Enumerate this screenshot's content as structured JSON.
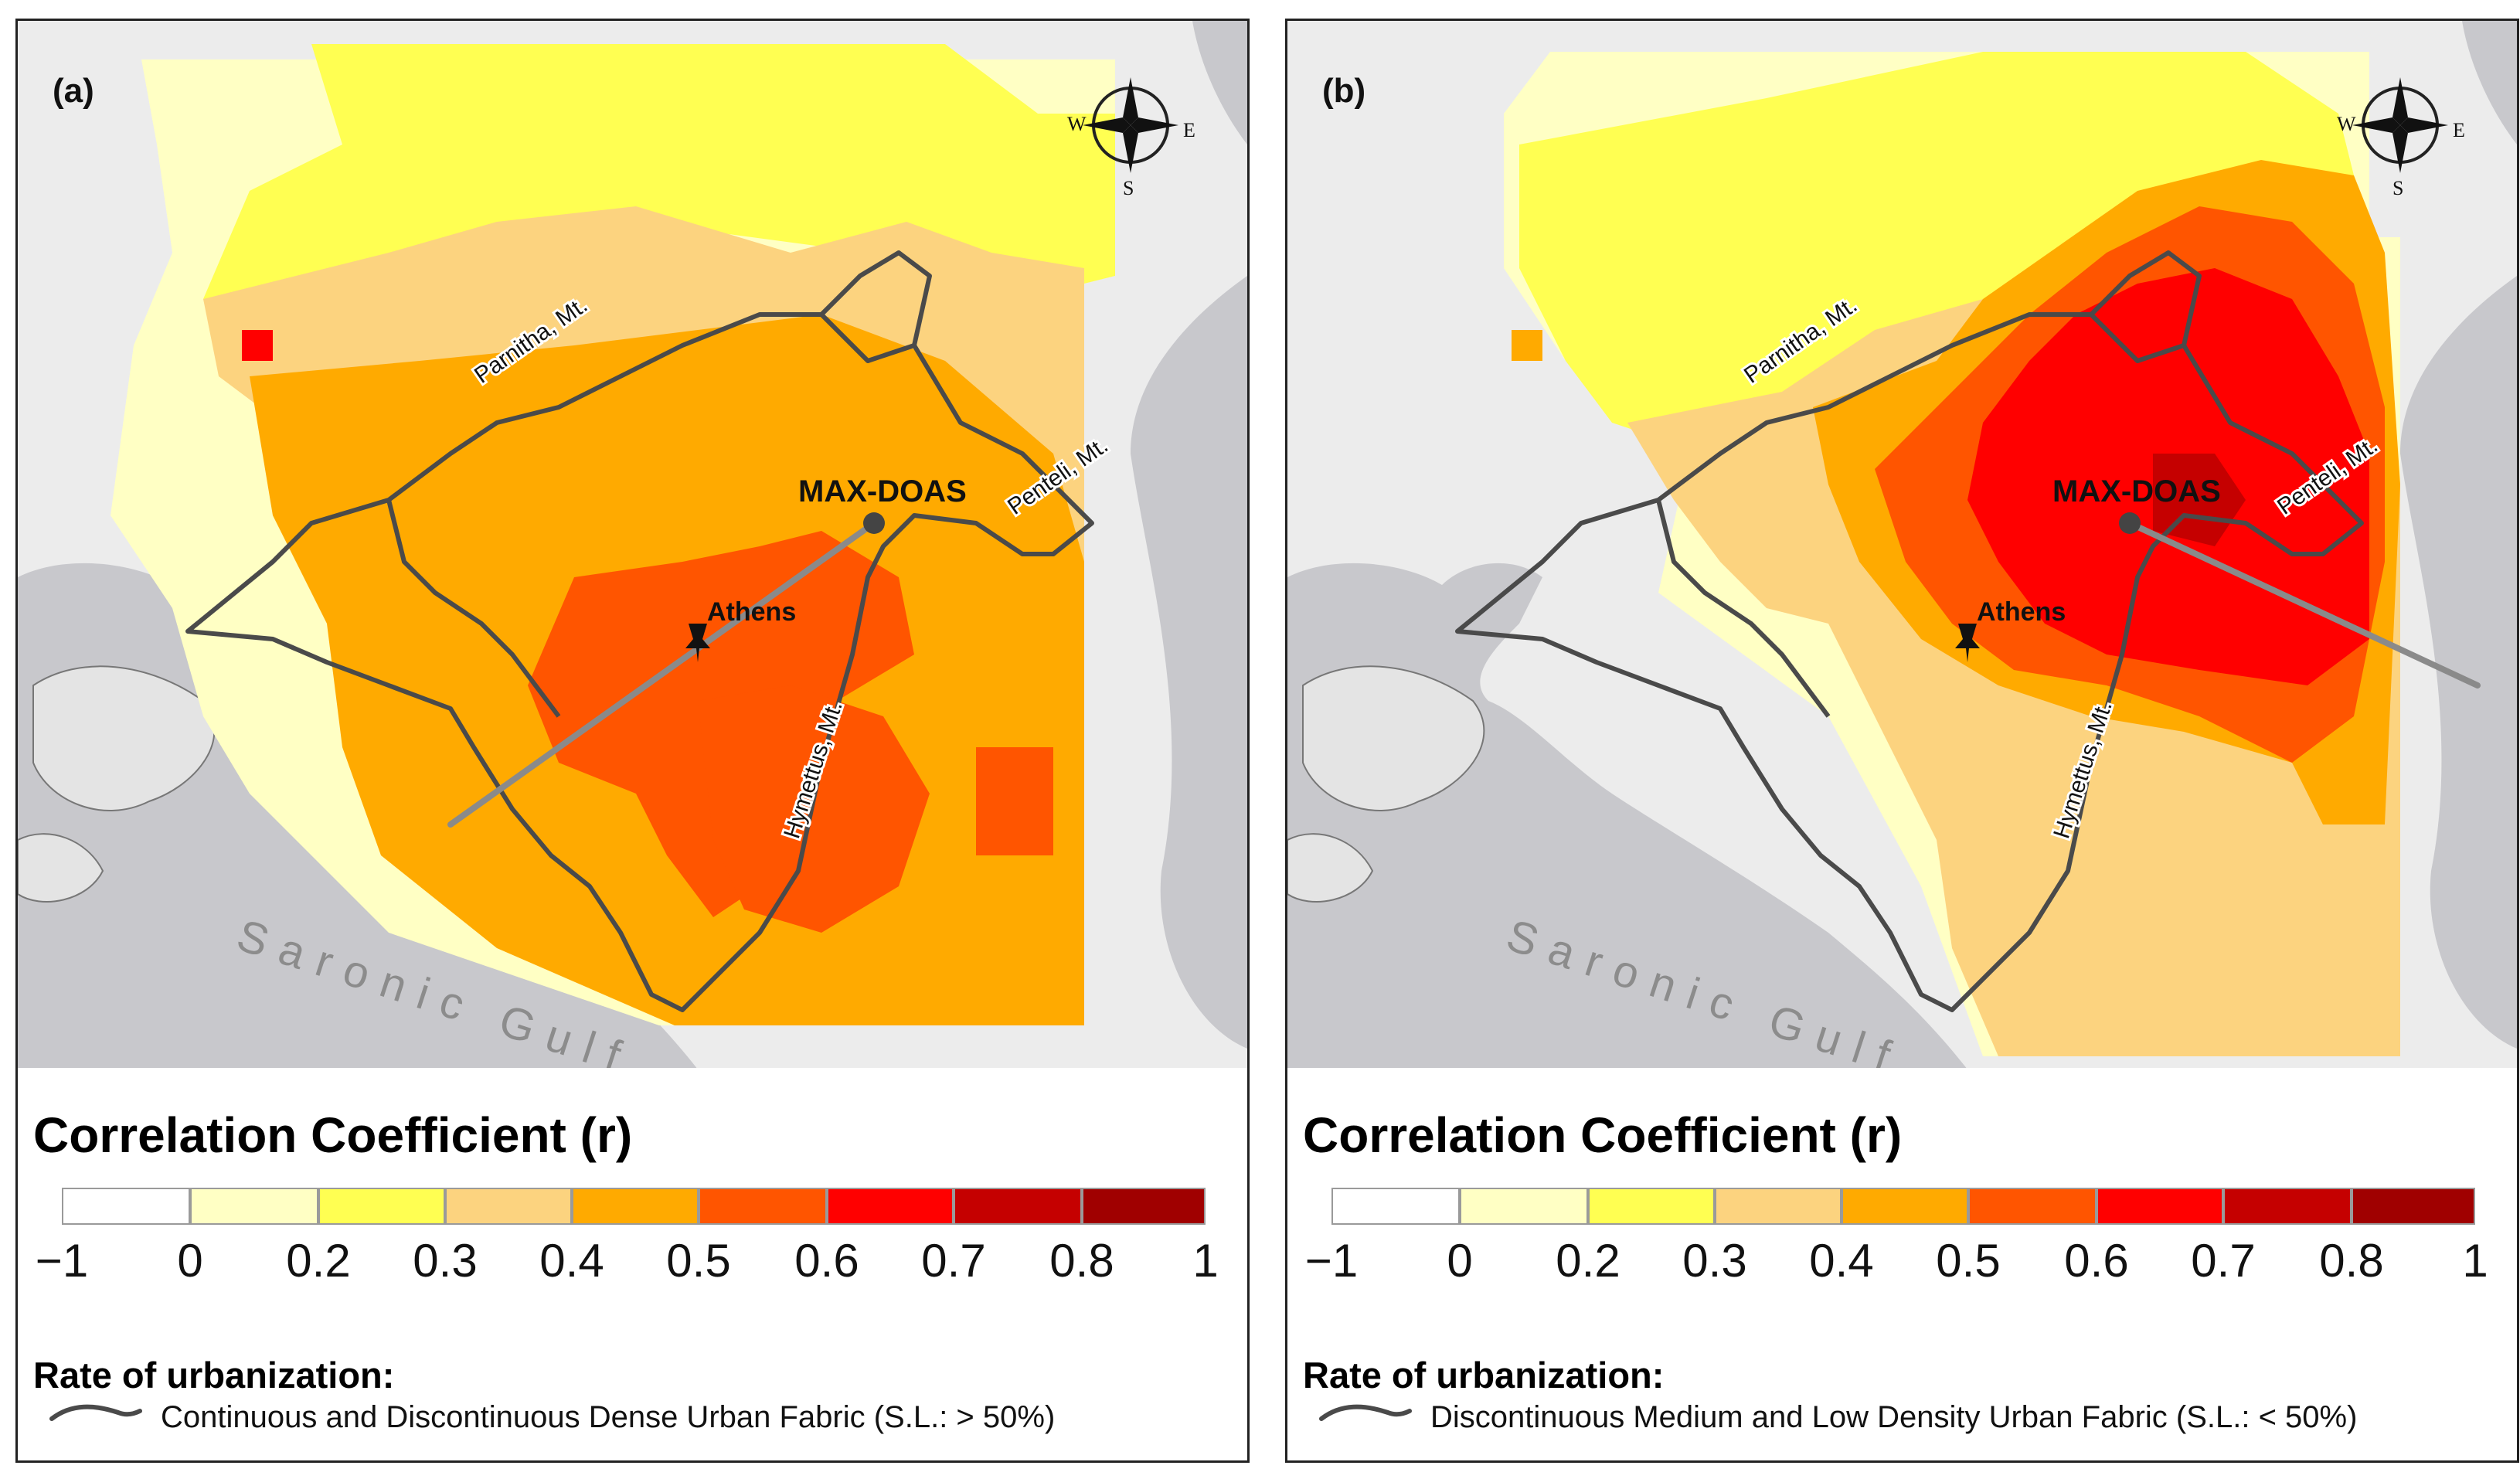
{
  "panels": [
    {
      "label": "(a)",
      "places": {
        "station": "MAX-DOAS",
        "city": "Athens",
        "gulf": "Saronic Gulf",
        "mt_parnitha": "Parnitha, Mt.",
        "mt_penteli": "Penteli, Mt.",
        "mt_hymettus": "Hymettus, Mt."
      },
      "compass": {
        "w": "W",
        "e": "E",
        "s": "S"
      },
      "legend": {
        "title": "Correlation Coefficient (r)",
        "ticks": [
          "−1",
          "0",
          "0.2",
          "0.3",
          "0.4",
          "0.5",
          "0.6",
          "0.7",
          "0.8",
          "1"
        ],
        "urbanization_title": "Rate of urbanization:",
        "line_label": "Continuous and Discontinuous Dense Urban Fabric (S.L.: > 50%)"
      }
    },
    {
      "label": "(b)",
      "places": {
        "station": "MAX-DOAS",
        "city": "Athens",
        "gulf": "Saronic Gulf",
        "mt_parnitha": "Parnitha, Mt.",
        "mt_penteli": "Penteli, Mt.",
        "mt_hymettus": "Hymettus, Mt."
      },
      "compass": {
        "w": "W",
        "e": "E",
        "s": "S"
      },
      "legend": {
        "title": "Correlation Coefficient (r)",
        "ticks": [
          "−1",
          "0",
          "0.2",
          "0.3",
          "0.4",
          "0.5",
          "0.6",
          "0.7",
          "0.8",
          "1"
        ],
        "urbanization_title": "Rate of urbanization:",
        "line_label": "Discontinuous Medium and Low Density Urban Fabric (S.L.: < 50%)"
      }
    }
  ],
  "color_scale": {
    "classes": [
      {
        "from": -1,
        "to": 0,
        "color": "#ffffff"
      },
      {
        "from": 0,
        "to": 0.2,
        "color": "#ffffc4"
      },
      {
        "from": 0.2,
        "to": 0.3,
        "color": "#ffff52"
      },
      {
        "from": 0.3,
        "to": 0.4,
        "color": "#fcd37f"
      },
      {
        "from": 0.4,
        "to": 0.5,
        "color": "#ffaa00"
      },
      {
        "from": 0.5,
        "to": 0.6,
        "color": "#ff5500"
      },
      {
        "from": 0.6,
        "to": 0.7,
        "color": "#ff0000"
      },
      {
        "from": 0.7,
        "to": 0.8,
        "color": "#c50000"
      },
      {
        "from": 0.8,
        "to": 1,
        "color": "#a00000"
      }
    ]
  },
  "colors": {
    "land": "#ececec",
    "sea": "#c8c8cc",
    "outline": "#4a4a4a",
    "transect": "#8a8a8a"
  }
}
